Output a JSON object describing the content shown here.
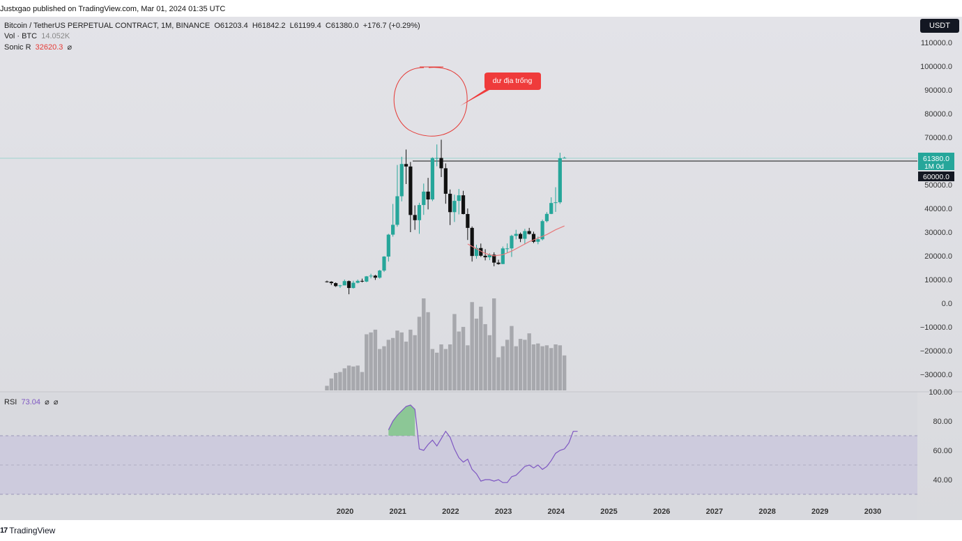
{
  "header": {
    "published": "Justxgao published on TradingView.com, Mar 01, 2024 01:35 UTC"
  },
  "legend": {
    "symbol": "Bitcoin / TetherUS PERPETUAL CONTRACT, 1M, BINANCE",
    "open": "O61203.4",
    "high": "H61842.2",
    "low": "L61199.4",
    "close": "C61380.0",
    "change": "+176.7 (+0.29%)",
    "vol_label": "Vol · BTC",
    "vol_value": "14.052K",
    "sonic_label": "Sonic R",
    "sonic_value": "32620.3",
    "rsi_label": "RSI",
    "rsi_value": "73.04",
    "eye_glyph": "⌀"
  },
  "currency_button": "USDT",
  "price_labels": {
    "last": "61380.0",
    "timeframe": "1M 0d",
    "line": "60000.0"
  },
  "annotation": {
    "callout_text": "dư địa trống"
  },
  "footer": {
    "brand": "TradingView",
    "logo_glyph": "17"
  },
  "colors": {
    "up": "#26a69a",
    "down": "#111111",
    "rsi": "#7e57c2",
    "callout": "#ef3b3b",
    "sonic": "#e8787a"
  },
  "chart_data": {
    "type": "candlestick",
    "y_ticks": [
      "110000.0",
      "100000.0",
      "90000.0",
      "80000.0",
      "70000.0",
      "60000.0",
      "50000.0",
      "40000.0",
      "30000.0",
      "20000.0",
      "10000.0",
      "0.0",
      "−10000.0",
      "−20000.0",
      "−30000.0"
    ],
    "x_ticks": [
      "2020",
      "2021",
      "2022",
      "2023",
      "2024",
      "2025",
      "2026",
      "2027",
      "2028",
      "2029",
      "2030"
    ],
    "rsi_ticks": [
      "100.00",
      "80.00",
      "60.00",
      "40.00"
    ],
    "rsi_band": [
      30,
      70
    ],
    "horizontal_line": 60000,
    "candles": [
      [
        9200,
        9550,
        8750,
        9100
      ],
      [
        9100,
        9300,
        7700,
        8500
      ],
      [
        8500,
        8800,
        6900,
        7250
      ],
      [
        7250,
        7750,
        6500,
        7550
      ],
      [
        7550,
        10000,
        7550,
        9350
      ],
      [
        9350,
        9600,
        3800,
        6450
      ],
      [
        6450,
        9500,
        6200,
        8650
      ],
      [
        8650,
        10000,
        8400,
        9450
      ],
      [
        9450,
        10400,
        8800,
        9150
      ],
      [
        9150,
        11500,
        8900,
        11350
      ],
      [
        11350,
        12450,
        10500,
        11650
      ],
      [
        11650,
        12000,
        9850,
        10800
      ],
      [
        10800,
        14100,
        10400,
        13800
      ],
      [
        13800,
        19900,
        13200,
        19700
      ],
      [
        19700,
        29300,
        17600,
        28950
      ],
      [
        28950,
        41900,
        28100,
        33100
      ],
      [
        33100,
        58350,
        32300,
        45150
      ],
      [
        45150,
        61800,
        43000,
        58750
      ],
      [
        58750,
        64850,
        50300,
        57700
      ],
      [
        57700,
        59600,
        30000,
        37250
      ],
      [
        37250,
        41300,
        31000,
        35050
      ],
      [
        35050,
        42400,
        29300,
        41450
      ],
      [
        41450,
        50500,
        37300,
        47100
      ],
      [
        47100,
        52900,
        39600,
        43800
      ],
      [
        43800,
        61600,
        43100,
        61300
      ],
      [
        61300,
        67000,
        57800,
        61300
      ],
      [
        61300,
        69000,
        53250,
        56950
      ],
      [
        56950,
        59000,
        42000,
        46200
      ],
      [
        46200,
        48000,
        33000,
        38450
      ],
      [
        38450,
        45800,
        34300,
        43200
      ],
      [
        43200,
        48200,
        37500,
        45550
      ],
      [
        45550,
        47450,
        37500,
        37650
      ],
      [
        37650,
        40000,
        26700,
        31800
      ],
      [
        31800,
        32400,
        17600,
        19950
      ],
      [
        19950,
        24700,
        18800,
        23300
      ],
      [
        23300,
        25200,
        19550,
        20050
      ],
      [
        20050,
        22800,
        18100,
        19400
      ],
      [
        19400,
        21100,
        18200,
        20500
      ],
      [
        20500,
        21500,
        15600,
        17150
      ],
      [
        17150,
        18400,
        16250,
        16550
      ],
      [
        16550,
        23950,
        16500,
        23150
      ],
      [
        23150,
        25250,
        21350,
        23150
      ],
      [
        23150,
        28900,
        19550,
        28450
      ],
      [
        28450,
        31000,
        26950,
        29250
      ],
      [
        29250,
        29850,
        25800,
        27200
      ],
      [
        27200,
        31400,
        24800,
        30450
      ],
      [
        30450,
        31800,
        29000,
        29250
      ],
      [
        29250,
        30200,
        25400,
        25950
      ],
      [
        25950,
        28150,
        24900,
        27000
      ],
      [
        27000,
        35300,
        26500,
        34650
      ],
      [
        34650,
        38450,
        34100,
        37700
      ],
      [
        37700,
        44700,
        37600,
        42300
      ],
      [
        42300,
        48950,
        38550,
        42600
      ],
      [
        42600,
        63500,
        41900,
        61200
      ],
      [
        61200,
        61850,
        61200,
        61380
      ]
    ],
    "volume": [
      5,
      13,
      19,
      20,
      24,
      27,
      26,
      27,
      20,
      61,
      63,
      66,
      45,
      48,
      55,
      57,
      65,
      63,
      53,
      66,
      60,
      80,
      100,
      85,
      45,
      41,
      50,
      45,
      50,
      83,
      64,
      69,
      49,
      96,
      78,
      91,
      72,
      60,
      100,
      36,
      48,
      55,
      70,
      48,
      56,
      55,
      62,
      50,
      51,
      48,
      49,
      46,
      50,
      49,
      38
    ],
    "rsi": [
      74,
      80,
      84,
      87,
      90,
      91,
      88,
      61,
      60,
      64,
      67,
      63,
      68,
      73,
      69,
      61,
      55,
      52,
      54,
      47,
      44,
      39,
      40,
      40,
      39,
      40,
      38,
      38,
      42,
      43,
      46,
      49,
      50,
      48,
      50,
      47,
      49,
      53,
      58,
      60,
      61,
      65,
      73,
      73
    ],
    "sonic": [
      25000,
      23000,
      21000,
      20000,
      20500,
      22000,
      24000,
      26000,
      27500,
      29000,
      31000,
      32620
    ]
  }
}
